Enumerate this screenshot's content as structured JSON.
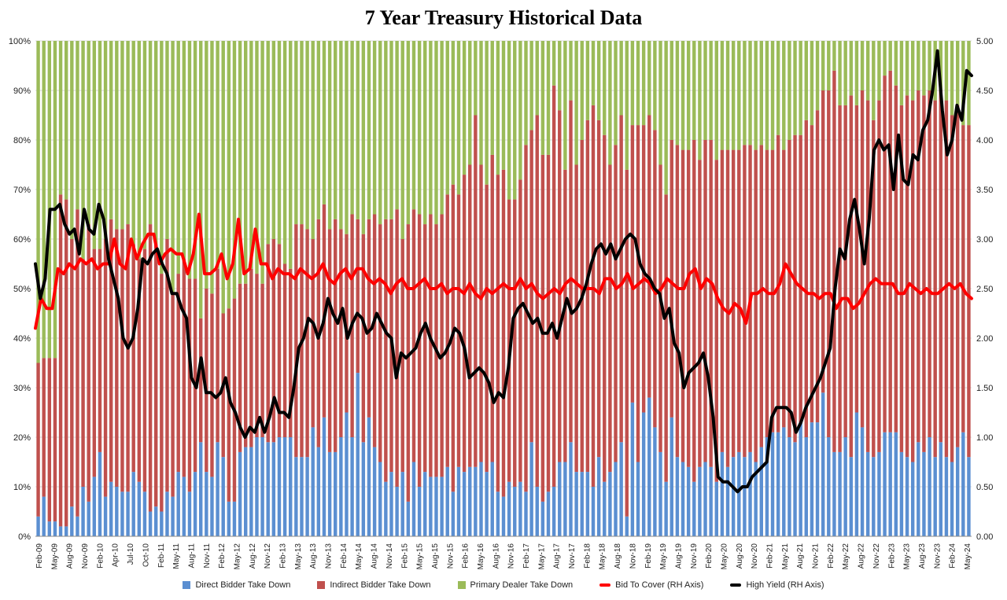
{
  "chart_data": {
    "type": "bar",
    "title": "7 Year Treasury Historical Data",
    "left_axis": {
      "ylim": [
        0,
        100
      ],
      "ticks": [
        "0%",
        "10%",
        "20%",
        "30%",
        "40%",
        "50%",
        "60%",
        "70%",
        "80%",
        "90%",
        "100%"
      ]
    },
    "right_axis": {
      "ylim": [
        0,
        5
      ],
      "ticks": [
        "0.00",
        "0.50",
        "1.00",
        "1.50",
        "2.00",
        "2.50",
        "3.00",
        "3.50",
        "4.00",
        "4.50",
        "5.00"
      ]
    },
    "x_tick_labels": [
      "Feb-09",
      "May-09",
      "Aug-09",
      "Nov-09",
      "Feb-10",
      "Apr-10",
      "Jul-10",
      "Oct-10",
      "Feb-11",
      "May-11",
      "Aug-11",
      "Nov-11",
      "Feb-12",
      "May-12",
      "Aug-12",
      "Nov-12",
      "Feb-13",
      "May-13",
      "Aug-13",
      "Nov-13",
      "Feb-14",
      "May-14",
      "Aug-14",
      "Nov-14",
      "Feb-15",
      "May-15",
      "Aug-15",
      "Nov-15",
      "Feb-16",
      "May-16",
      "Aug-16",
      "Nov-16",
      "Feb-17",
      "May-17",
      "Aug-17",
      "Nov-17",
      "Feb-18",
      "May-18",
      "Aug-18",
      "Nov-18",
      "Feb-19",
      "May-19",
      "Aug-19",
      "Nov-19",
      "Feb-20",
      "May-20",
      "Aug-20",
      "Nov-20",
      "Feb-21",
      "May-21",
      "Aug-21",
      "Nov-21",
      "Feb-22",
      "May-22",
      "Aug-22",
      "Nov-22",
      "Feb-23",
      "May-23",
      "Aug-23",
      "Nov-23",
      "Feb-24",
      "May-24"
    ],
    "stack_series_note": "Direct + Indirect + Primary Dealer = 100% per auction",
    "series": [
      {
        "name": "Direct Bidder Take Down",
        "color": "#5b8fd1",
        "axis": "left",
        "kind": "stacked-bar",
        "values": [
          4,
          8,
          3,
          3,
          2,
          2,
          6,
          4,
          10,
          7,
          12,
          17,
          8,
          11,
          10,
          9,
          9,
          13,
          11,
          9,
          5,
          6,
          5,
          9,
          8,
          13,
          12,
          9,
          13,
          19,
          13,
          12,
          19,
          16,
          7,
          7,
          17,
          18,
          18,
          20,
          20,
          19,
          19,
          20,
          20,
          20,
          16,
          16,
          16,
          22,
          18,
          24,
          17,
          17,
          20,
          25,
          20,
          33,
          19,
          24,
          18,
          15,
          11,
          13,
          10,
          13,
          7,
          15,
          10,
          13,
          12,
          12,
          12,
          14,
          9,
          14,
          13,
          14,
          14,
          15,
          13,
          15,
          9,
          8,
          11,
          10,
          11,
          9,
          19,
          10,
          7,
          9,
          10,
          15,
          15,
          19,
          13,
          13,
          13,
          10,
          16,
          11,
          13,
          15,
          19,
          4,
          27,
          15,
          25,
          28,
          22,
          17,
          11,
          24,
          16,
          15,
          14,
          11,
          14,
          15,
          14,
          11,
          17,
          14,
          16,
          17,
          16,
          17,
          15,
          18,
          20,
          21,
          21,
          22,
          20,
          19,
          23,
          20,
          23,
          23,
          29,
          20,
          17,
          17,
          20,
          16,
          25,
          22,
          17,
          16,
          17,
          21,
          21,
          21,
          17,
          16,
          15,
          19,
          17,
          20,
          16,
          19,
          16,
          15,
          18,
          21,
          16
        ]
      },
      {
        "name": "Indirect Bidder Take Down",
        "color": "#c0504d",
        "axis": "left",
        "kind": "stacked-bar",
        "values": [
          31,
          28,
          33,
          33,
          67,
          66,
          54,
          62,
          46,
          56,
          46,
          41,
          52,
          53,
          52,
          53,
          54,
          46,
          45,
          49,
          58,
          53,
          48,
          51,
          41,
          40,
          44,
          43,
          39,
          25,
          37,
          37,
          35,
          29,
          39,
          41,
          34,
          33,
          36,
          33,
          31,
          40,
          41,
          39,
          35,
          34,
          47,
          47,
          46,
          38,
          46,
          43,
          45,
          47,
          42,
          36,
          45,
          31,
          42,
          40,
          47,
          48,
          53,
          51,
          56,
          47,
          56,
          51,
          55,
          50,
          53,
          51,
          53,
          55,
          62,
          55,
          60,
          61,
          71,
          60,
          58,
          62,
          64,
          66,
          57,
          58,
          61,
          70,
          63,
          75,
          70,
          68,
          81,
          71,
          59,
          69,
          62,
          67,
          71,
          77,
          68,
          70,
          62,
          64,
          66,
          70,
          56,
          68,
          58,
          57,
          60,
          58,
          58,
          56,
          63,
          63,
          64,
          69,
          62,
          65,
          66,
          65,
          61,
          64,
          62,
          61,
          63,
          62,
          63,
          61,
          58,
          57,
          60,
          56,
          60,
          62,
          58,
          64,
          60,
          63,
          61,
          70,
          77,
          70,
          67,
          73,
          62,
          68,
          71,
          68,
          71,
          72,
          73,
          70,
          70,
          73,
          73,
          71,
          72,
          70,
          72,
          71,
          72,
          70,
          69,
          62,
          67
        ]
      },
      {
        "name": "Primary Dealer Take Down",
        "color": "#9bbb59",
        "axis": "left",
        "kind": "stacked-bar"
      },
      {
        "name": "Bid To Cover (RH Axis)",
        "color": "#ff0000",
        "axis": "right",
        "kind": "line",
        "values": [
          2.1,
          2.4,
          2.3,
          2.3,
          2.7,
          2.65,
          2.75,
          2.7,
          2.8,
          2.75,
          2.8,
          2.7,
          2.75,
          2.75,
          3.0,
          2.75,
          2.7,
          3.0,
          2.8,
          2.95,
          3.05,
          3.05,
          2.75,
          2.85,
          2.9,
          2.85,
          2.85,
          2.65,
          2.85,
          3.25,
          2.65,
          2.65,
          2.7,
          2.85,
          2.6,
          2.75,
          3.2,
          2.65,
          2.7,
          3.1,
          2.75,
          2.75,
          2.6,
          2.7,
          2.65,
          2.65,
          2.6,
          2.7,
          2.65,
          2.6,
          2.65,
          2.75,
          2.6,
          2.55,
          2.65,
          2.7,
          2.6,
          2.7,
          2.7,
          2.6,
          2.55,
          2.6,
          2.55,
          2.45,
          2.55,
          2.6,
          2.5,
          2.5,
          2.55,
          2.6,
          2.5,
          2.5,
          2.55,
          2.45,
          2.5,
          2.5,
          2.45,
          2.55,
          2.45,
          2.4,
          2.5,
          2.45,
          2.5,
          2.55,
          2.5,
          2.5,
          2.6,
          2.5,
          2.55,
          2.45,
          2.4,
          2.45,
          2.5,
          2.45,
          2.55,
          2.6,
          2.55,
          2.5,
          2.5,
          2.5,
          2.45,
          2.6,
          2.6,
          2.5,
          2.55,
          2.65,
          2.5,
          2.55,
          2.6,
          2.55,
          2.45,
          2.5,
          2.6,
          2.55,
          2.5,
          2.5,
          2.65,
          2.7,
          2.5,
          2.6,
          2.55,
          2.4,
          2.3,
          2.25,
          2.35,
          2.3,
          2.15,
          2.45,
          2.45,
          2.5,
          2.45,
          2.45,
          2.55,
          2.75,
          2.65,
          2.55,
          2.5,
          2.45,
          2.45,
          2.4,
          2.45,
          2.45,
          2.3,
          2.4,
          2.4,
          2.3,
          2.35,
          2.45,
          2.55,
          2.6,
          2.55,
          2.55,
          2.55,
          2.45,
          2.45,
          2.55,
          2.5,
          2.45,
          2.5,
          2.45,
          2.45,
          2.5,
          2.55,
          2.5,
          2.55,
          2.45,
          2.4
        ]
      },
      {
        "name": "High Yield (RH Axis)",
        "color": "#000000",
        "axis": "right",
        "kind": "line",
        "values": [
          2.75,
          2.4,
          2.6,
          3.3,
          3.3,
          3.35,
          3.15,
          3.05,
          3.1,
          2.85,
          3.3,
          3.1,
          3.05,
          3.35,
          3.2,
          2.8,
          2.6,
          2.4,
          2.0,
          1.9,
          2.0,
          2.3,
          2.8,
          2.75,
          2.85,
          2.9,
          2.75,
          2.65,
          2.45,
          2.45,
          2.3,
          2.2,
          1.6,
          1.5,
          1.8,
          1.45,
          1.45,
          1.4,
          1.45,
          1.6,
          1.35,
          1.25,
          1.1,
          1.0,
          1.1,
          1.05,
          1.2,
          1.05,
          1.2,
          1.4,
          1.25,
          1.25,
          1.2,
          1.5,
          1.9,
          2.0,
          2.2,
          2.15,
          2.0,
          2.15,
          2.4,
          2.25,
          2.15,
          2.3,
          2.0,
          2.15,
          2.25,
          2.2,
          2.05,
          2.1,
          2.25,
          2.15,
          2.05,
          2.0,
          1.6,
          1.85,
          1.8,
          1.85,
          1.9,
          2.05,
          2.15,
          2.0,
          1.9,
          1.8,
          1.85,
          1.95,
          2.1,
          2.05,
          1.9,
          1.6,
          1.65,
          1.7,
          1.65,
          1.55,
          1.35,
          1.45,
          1.4,
          1.7,
          2.2,
          2.3,
          2.35,
          2.25,
          2.15,
          2.2,
          2.05,
          2.05,
          2.15,
          2.0,
          2.2,
          2.4,
          2.25,
          2.3,
          2.4,
          2.55,
          2.75,
          2.9,
          2.95,
          2.85,
          2.95,
          2.8,
          2.9,
          3.0,
          3.05,
          3.0,
          2.75,
          2.65,
          2.6,
          2.5,
          2.45,
          2.2,
          2.3,
          1.95,
          1.85,
          1.5,
          1.65,
          1.7,
          1.75,
          1.85,
          1.6,
          1.2,
          0.6,
          0.55,
          0.55,
          0.5,
          0.45,
          0.5,
          0.5,
          0.6,
          0.65,
          0.7,
          0.75,
          1.2,
          1.3,
          1.3,
          1.3,
          1.25,
          1.05,
          1.15,
          1.3,
          1.4,
          1.5,
          1.6,
          1.75,
          1.9,
          2.5,
          2.9,
          2.8,
          3.2,
          3.4,
          3.1,
          2.75,
          3.2,
          3.9,
          4.0,
          3.9,
          3.95,
          3.5,
          4.05,
          3.6,
          3.55,
          3.85,
          3.8,
          4.1,
          4.2,
          4.5,
          4.9,
          4.3,
          3.85,
          4.0,
          4.35,
          4.2,
          4.7,
          4.65
        ]
      }
    ],
    "legend_position": "bottom"
  }
}
